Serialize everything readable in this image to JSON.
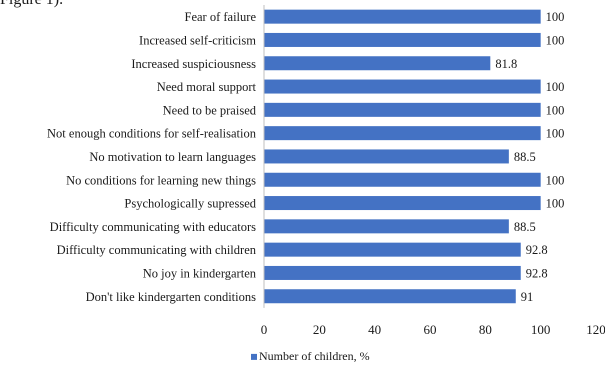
{
  "page": {
    "fragment_text": "Figure 1)."
  },
  "chart_data": {
    "type": "bar",
    "orientation": "horizontal",
    "categories": [
      "Fear of failure",
      "Increased self-criticism",
      "Increased suspiciousness",
      "Need moral support",
      "Need to be praised",
      "Not enough conditions for self-realisation",
      "No motivation to learn languages",
      "No conditions for learning new things",
      "Psychologically supressed",
      "Difficulty communicating with educators",
      "Difficulty communicating with children",
      "No joy in kindergarten",
      "Don't like kindergarten conditions"
    ],
    "series": [
      {
        "name": "Number of children, %",
        "color": "#4472C4",
        "values": [
          100,
          100,
          81.8,
          100,
          100,
          100,
          88.5,
          100,
          100,
          88.5,
          92.8,
          92.8,
          91
        ],
        "labels": [
          "100",
          "100",
          "81.8",
          "100",
          "100",
          "100",
          "88.5",
          "100",
          "100",
          "88.5",
          "92.8",
          "92.8",
          "91"
        ]
      }
    ],
    "xlim": [
      0,
      120
    ],
    "xticks": [
      0,
      20,
      40,
      60,
      80,
      100,
      120
    ],
    "grid": false,
    "legend_position": "bottom"
  }
}
